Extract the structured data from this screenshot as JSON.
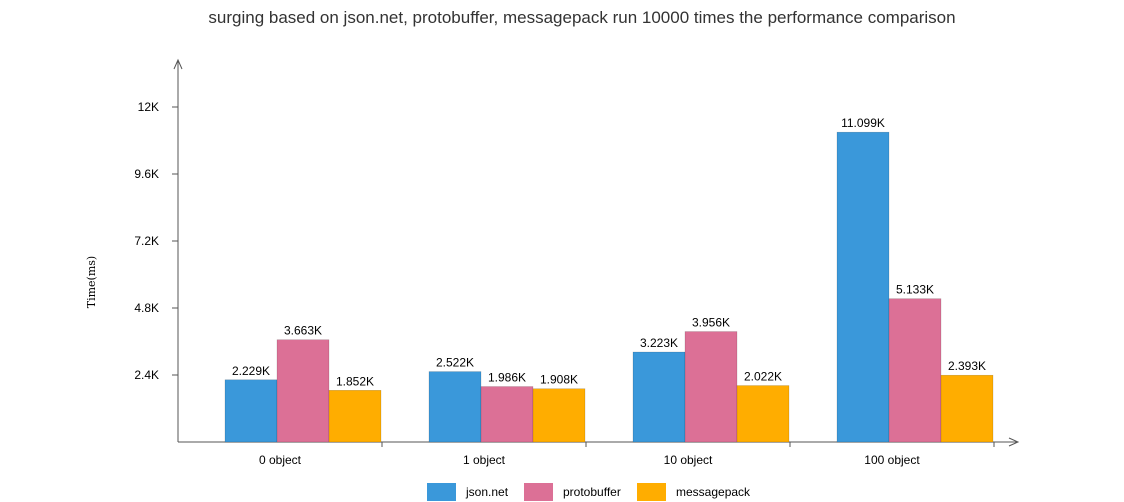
{
  "chart_data": {
    "type": "bar",
    "title": "surging based on json.net, protobuffer, messagepack run 10000 times the performance comparison",
    "xlabel": "",
    "ylabel": "Time(ms)",
    "categories": [
      "0 object",
      "1 object",
      "10 object",
      "100 object"
    ],
    "series": [
      {
        "name": "json.net",
        "color": "#3a98da",
        "values": [
          2229,
          2522,
          3223,
          11099
        ],
        "labels": [
          "2.229K",
          "2.522K",
          "3.223K",
          "11.099K"
        ]
      },
      {
        "name": "protobuffer",
        "color": "#dc7096",
        "values": [
          3663,
          1986,
          3956,
          5133
        ],
        "labels": [
          "3.663K",
          "1.986K",
          "3.956K",
          "5.133K"
        ]
      },
      {
        "name": "messagepack",
        "color": "#ffad00",
        "values": [
          1852,
          1908,
          2022,
          2393
        ],
        "labels": [
          "1.852K",
          "1.908K",
          "2.022K",
          "2.393K"
        ]
      }
    ],
    "yticks": [
      {
        "value": 2400,
        "label": "2.4K"
      },
      {
        "value": 4800,
        "label": "4.8K"
      },
      {
        "value": 7200,
        "label": "7.2K"
      },
      {
        "value": 9600,
        "label": "9.6K"
      },
      {
        "value": 12000,
        "label": "12K"
      }
    ],
    "ylim": [
      0,
      13300
    ],
    "grid": false,
    "legend_position": "bottom-center"
  }
}
